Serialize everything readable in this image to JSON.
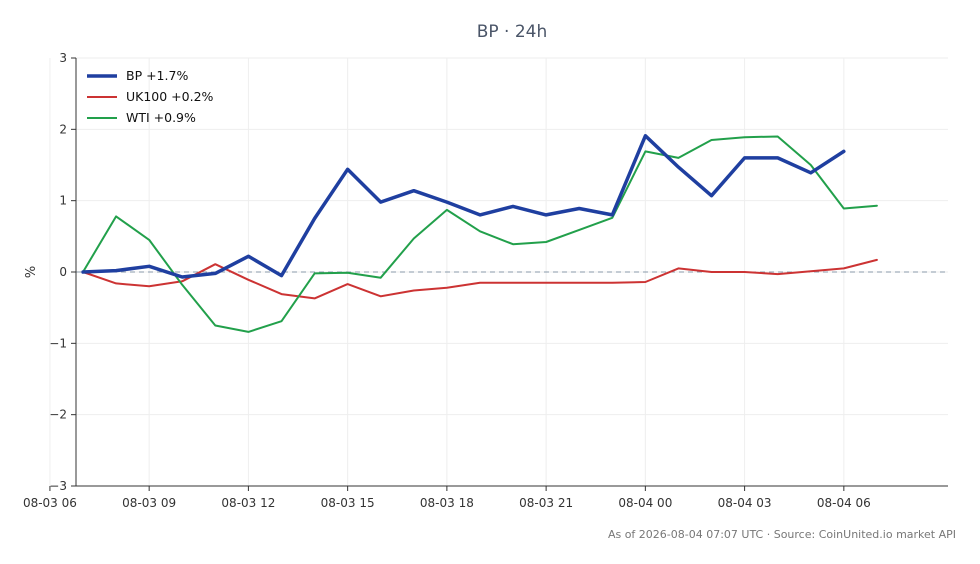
{
  "chart_data": {
    "type": "line",
    "title": "BP · 24h",
    "xlabel": "",
    "ylabel": "%",
    "ylim": [
      -3,
      3
    ],
    "yticks": [
      3,
      2,
      1,
      0,
      -1,
      -2,
      -3
    ],
    "ytick_labels": [
      "3",
      "2",
      "1",
      "0",
      "−1",
      "−2",
      "−3"
    ],
    "xticks": [
      "08-03 06",
      "08-03 09",
      "08-03 12",
      "08-03 15",
      "08-03 18",
      "08-03 21",
      "08-04 00",
      "08-04 03",
      "08-04 06"
    ],
    "x": [
      "08-03 07",
      "08-03 08",
      "08-03 09",
      "08-03 10",
      "08-03 11",
      "08-03 12",
      "08-03 13",
      "08-03 14",
      "08-03 15",
      "08-03 16",
      "08-03 17",
      "08-03 18",
      "08-03 19",
      "08-03 20",
      "08-03 21",
      "08-03 22",
      "08-03 23",
      "08-04 00",
      "08-04 01",
      "08-04 02",
      "08-04 03",
      "08-04 04",
      "08-04 05",
      "08-04 06",
      "08-04 07"
    ],
    "grid": true,
    "zero_line": "dashed",
    "legend": "top-left",
    "series": [
      {
        "name": "BP +1.7%",
        "color": "#1f3fa0",
        "width": "thick",
        "values": [
          0.0,
          0.02,
          0.08,
          -0.07,
          -0.02,
          0.22,
          -0.05,
          0.75,
          1.44,
          0.98,
          1.14,
          0.98,
          0.8,
          0.92,
          0.8,
          0.89,
          0.8,
          1.91,
          1.47,
          1.07,
          1.6,
          1.6,
          1.39,
          1.69,
          null
        ]
      },
      {
        "name": "UK100 +0.2%",
        "color": "#cc3333",
        "width": "thin",
        "values": [
          0.0,
          -0.16,
          -0.2,
          -0.13,
          0.11,
          -0.11,
          -0.31,
          -0.37,
          -0.17,
          -0.34,
          -0.26,
          -0.22,
          -0.15,
          -0.15,
          -0.15,
          -0.15,
          -0.15,
          -0.14,
          0.05,
          0.0,
          0.0,
          -0.03,
          0.01,
          0.05,
          0.17
        ]
      },
      {
        "name": "WTI +0.9%",
        "color": "#22a04b",
        "width": "thin",
        "values": [
          0.0,
          0.78,
          0.45,
          -0.18,
          -0.75,
          -0.84,
          -0.69,
          -0.02,
          -0.01,
          -0.08,
          0.47,
          0.87,
          0.57,
          0.39,
          0.42,
          0.59,
          0.76,
          1.69,
          1.6,
          1.85,
          1.89,
          1.9,
          1.5,
          0.89,
          0.93
        ]
      }
    ]
  },
  "footer": {
    "text": "As of 2026-08-04 07:07 UTC · Source: CoinUnited.io market API"
  }
}
